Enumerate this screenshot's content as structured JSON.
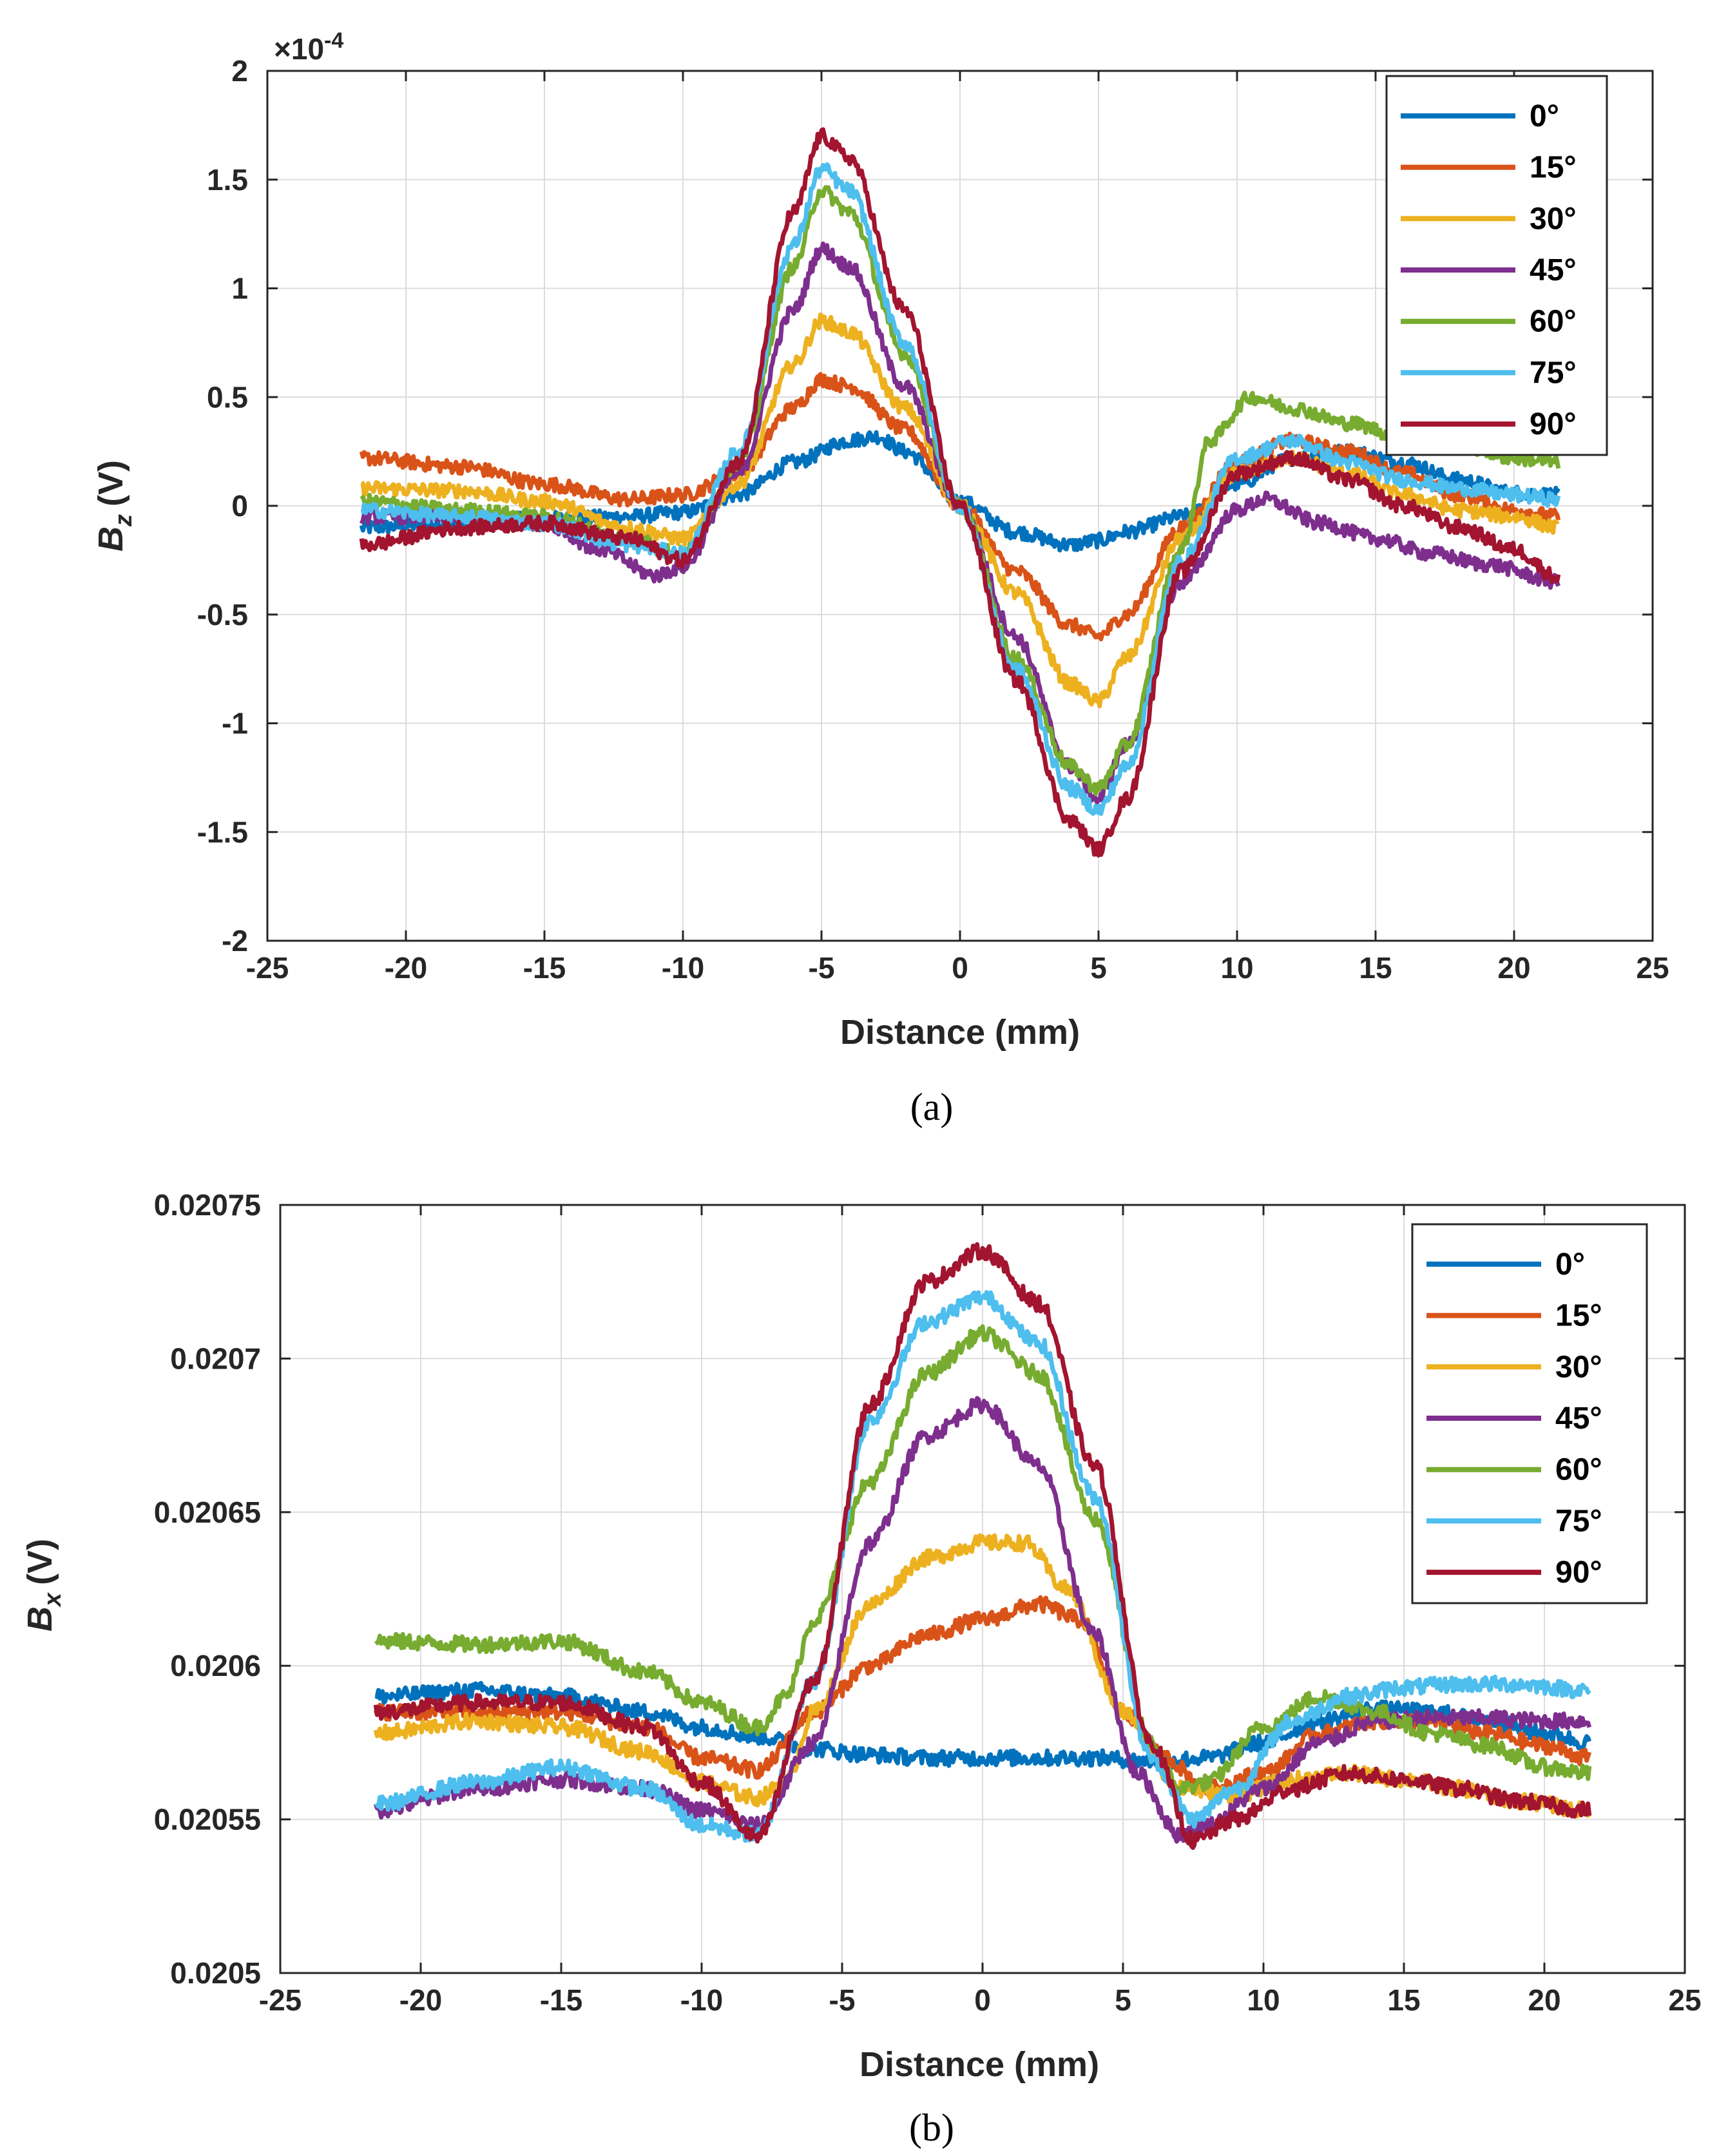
{
  "chart_data": [
    {
      "type": "line",
      "panel": "a",
      "caption": "(a)",
      "xlabel": "Distance (mm)",
      "ylabel_main": "B",
      "ylabel_sub": "z",
      "ylabel_unit": "(V)",
      "exponent_label": "×10",
      "exponent_power": "-4",
      "xlim": [
        -25,
        25
      ],
      "ylim": [
        -2,
        2
      ],
      "xticks": [
        -25,
        -20,
        -15,
        -10,
        -5,
        0,
        5,
        10,
        15,
        20,
        25
      ],
      "yticks": [
        -2,
        -1.5,
        -1,
        -0.5,
        0,
        0.5,
        1,
        1.5,
        2
      ],
      "xtick_labels": [
        "-25",
        "-20",
        "-15",
        "-10",
        "-5",
        "0",
        "5",
        "10",
        "15",
        "20",
        "25"
      ],
      "ytick_labels": [
        "-2",
        "-1.5",
        "-1",
        "-0.5",
        "0",
        "0.5",
        "1",
        "1.5",
        "2"
      ],
      "grid": true,
      "legend_position": "top-right",
      "series": [
        {
          "name": "0°",
          "color": "#0072BD",
          "x": [
            -21.6,
            -18,
            -15,
            -12,
            -10,
            -8,
            -6,
            -4,
            -3,
            -2,
            0,
            2,
            4,
            5,
            6,
            8,
            10,
            12,
            14,
            16,
            18,
            20,
            21.6
          ],
          "y": [
            -0.1,
            -0.08,
            -0.06,
            -0.05,
            -0.03,
            0.05,
            0.2,
            0.3,
            0.32,
            0.25,
            0.02,
            -0.12,
            -0.18,
            -0.16,
            -0.12,
            -0.05,
            0.1,
            0.22,
            0.25,
            0.2,
            0.12,
            0.06,
            0.05
          ]
        },
        {
          "name": "15°",
          "color": "#D95319",
          "x": [
            -21.6,
            -18,
            -15,
            -12,
            -10,
            -8,
            -6,
            -5,
            -4,
            -2,
            0,
            2,
            4,
            5,
            6,
            8,
            10,
            12,
            14,
            16,
            18,
            20,
            21.6
          ],
          "y": [
            0.22,
            0.18,
            0.1,
            0.03,
            0.05,
            0.15,
            0.45,
            0.58,
            0.55,
            0.35,
            0.0,
            -0.3,
            -0.55,
            -0.6,
            -0.5,
            -0.1,
            0.2,
            0.3,
            0.25,
            0.15,
            0.05,
            -0.02,
            -0.05
          ]
        },
        {
          "name": "30°",
          "color": "#EDB120",
          "x": [
            -21.6,
            -18,
            -15,
            -12,
            -10,
            -8,
            -6,
            -5,
            -4,
            -2,
            0,
            2,
            4,
            5,
            6,
            8,
            10,
            12,
            14,
            16,
            18,
            20,
            21.6
          ],
          "y": [
            0.08,
            0.07,
            0.02,
            -0.1,
            -0.15,
            0.1,
            0.65,
            0.85,
            0.8,
            0.45,
            0.0,
            -0.4,
            -0.82,
            -0.9,
            -0.7,
            -0.15,
            0.15,
            0.22,
            0.15,
            0.05,
            -0.02,
            -0.05,
            -0.1
          ]
        },
        {
          "name": "45°",
          "color": "#7E2F8E",
          "x": [
            -21.6,
            -18,
            -15,
            -13,
            -11,
            -10,
            -8,
            -6,
            -5,
            -4,
            -2,
            0,
            2,
            4,
            5,
            6,
            8,
            10,
            11,
            13,
            15,
            17,
            19,
            21.6
          ],
          "y": [
            -0.05,
            -0.05,
            -0.08,
            -0.2,
            -0.32,
            -0.28,
            0.15,
            0.9,
            1.18,
            1.1,
            0.55,
            0.0,
            -0.6,
            -1.2,
            -1.35,
            -1.1,
            -0.35,
            -0.02,
            0.03,
            -0.08,
            -0.15,
            -0.22,
            -0.27,
            -0.35
          ]
        },
        {
          "name": "60°",
          "color": "#77AC30",
          "x": [
            -21.6,
            -18,
            -15,
            -12,
            -10,
            -8,
            -6,
            -5,
            -4,
            -2,
            0,
            2,
            4,
            5,
            6,
            8,
            9,
            10.5,
            12,
            14,
            16,
            18,
            20,
            21.6
          ],
          "y": [
            0.02,
            -0.02,
            -0.05,
            -0.15,
            -0.22,
            0.2,
            1.1,
            1.45,
            1.35,
            0.7,
            0.0,
            -0.7,
            -1.2,
            -1.3,
            -1.1,
            -0.2,
            0.3,
            0.5,
            0.45,
            0.38,
            0.32,
            0.28,
            0.22,
            0.2
          ]
        },
        {
          "name": "75°",
          "color": "#4DBEEE",
          "x": [
            -21.6,
            -18,
            -15,
            -12,
            -10,
            -8,
            -6,
            -5,
            -4,
            -2,
            0,
            2,
            4,
            5,
            6,
            8,
            10,
            12,
            14,
            16,
            18,
            20,
            21.6
          ],
          "y": [
            -0.02,
            -0.05,
            -0.08,
            -0.18,
            -0.22,
            0.25,
            1.2,
            1.55,
            1.45,
            0.75,
            0.0,
            -0.75,
            -1.3,
            -1.4,
            -1.2,
            -0.25,
            0.22,
            0.3,
            0.2,
            0.12,
            0.08,
            0.05,
            0.03
          ]
        },
        {
          "name": "90°",
          "color": "#A2142F",
          "x": [
            -21.6,
            -18,
            -15,
            -12,
            -10,
            -8,
            -6,
            -5,
            -4,
            -2,
            0,
            2,
            4,
            5,
            6,
            8,
            10,
            12,
            14,
            16,
            18,
            20,
            21.6
          ],
          "y": [
            -0.18,
            -0.1,
            -0.08,
            -0.15,
            -0.25,
            0.2,
            1.35,
            1.7,
            1.6,
            0.9,
            0.0,
            -0.8,
            -1.45,
            -1.58,
            -1.35,
            -0.3,
            0.15,
            0.22,
            0.12,
            0.0,
            -0.1,
            -0.2,
            -0.33
          ]
        }
      ]
    },
    {
      "type": "line",
      "panel": "b",
      "caption": "(b)",
      "xlabel": "Distance (mm)",
      "ylabel_main": "B",
      "ylabel_sub": "x",
      "ylabel_unit": "(V)",
      "xlim": [
        -25,
        25
      ],
      "ylim": [
        0.0205,
        0.02075
      ],
      "xticks": [
        -25,
        -20,
        -15,
        -10,
        -5,
        0,
        5,
        10,
        15,
        20,
        25
      ],
      "yticks": [
        0.0205,
        0.02055,
        0.0206,
        0.02065,
        0.0207,
        0.02075
      ],
      "xtick_labels": [
        "-25",
        "-20",
        "-15",
        "-10",
        "-5",
        "0",
        "5",
        "10",
        "15",
        "20",
        "25"
      ],
      "ytick_labels": [
        "0.0205",
        "0.02055",
        "0.0206",
        "0.02065",
        "0.0207",
        "0.02075"
      ],
      "grid": true,
      "legend_position": "top-right",
      "series": [
        {
          "name": "0°",
          "color": "#0072BD",
          "x": [
            -21.6,
            -18,
            -15,
            -12,
            -10,
            -8,
            -6,
            -4,
            -2,
            0,
            2,
            4,
            6,
            8,
            10,
            12,
            14,
            16,
            18,
            20,
            21.6
          ],
          "y": [
            0.02059,
            0.020592,
            0.02059,
            0.020585,
            0.02058,
            0.020577,
            0.020573,
            0.020571,
            0.02057,
            0.02057,
            0.02057,
            0.02057,
            0.020569,
            0.02057,
            0.020575,
            0.020582,
            0.020586,
            0.020585,
            0.020582,
            0.020578,
            0.020575
          ]
        },
        {
          "name": "15°",
          "color": "#D95319",
          "x": [
            -21.6,
            -18,
            -15,
            -12,
            -10,
            -8,
            -6,
            -4,
            -2,
            0,
            2,
            3.5,
            5,
            6.5,
            8,
            10,
            12,
            14,
            16,
            18,
            20,
            21.6
          ],
          "y": [
            0.020585,
            0.020585,
            0.020585,
            0.02058,
            0.02057,
            0.020566,
            0.020585,
            0.0206,
            0.02061,
            0.020615,
            0.02062,
            0.020615,
            0.020585,
            0.02057,
            0.02056,
            0.020565,
            0.020578,
            0.020582,
            0.020582,
            0.020578,
            0.020574,
            0.02057
          ]
        },
        {
          "name": "30°",
          "color": "#EDB120",
          "x": [
            -21.6,
            -18,
            -15,
            -12,
            -10,
            -8,
            -7,
            -6,
            -4,
            -2,
            0,
            1.5,
            3,
            5,
            7,
            9,
            11,
            13,
            15,
            17,
            19,
            21.6
          ],
          "y": [
            0.020578,
            0.020582,
            0.02058,
            0.020572,
            0.020562,
            0.020557,
            0.020562,
            0.020585,
            0.02062,
            0.020635,
            0.02064,
            0.02064,
            0.020625,
            0.020585,
            0.02056,
            0.020558,
            0.020563,
            0.020565,
            0.020563,
            0.02056,
            0.020556,
            0.020553
          ]
        },
        {
          "name": "45°",
          "color": "#7E2F8E",
          "x": [
            -21.6,
            -18,
            -15,
            -12,
            -10,
            -8,
            -6,
            -4,
            -2,
            0,
            2,
            4,
            5.5,
            7,
            8,
            10,
            12,
            14,
            16,
            18,
            20,
            21.6
          ],
          "y": [
            0.020553,
            0.02056,
            0.020563,
            0.02056,
            0.020553,
            0.020548,
            0.020575,
            0.02064,
            0.020675,
            0.020685,
            0.020665,
            0.02061,
            0.020565,
            0.020545,
            0.020548,
            0.02056,
            0.020575,
            0.020582,
            0.020583,
            0.020583,
            0.020582,
            0.020582
          ]
        },
        {
          "name": "60°",
          "color": "#77AC30",
          "x": [
            -21.6,
            -18,
            -15,
            -12,
            -10,
            -8,
            -7,
            -6,
            -4,
            -2,
            0,
            2,
            4,
            6,
            7,
            8,
            10,
            12,
            14,
            16,
            18,
            20,
            21.6
          ],
          "y": [
            0.020608,
            0.020607,
            0.020608,
            0.020598,
            0.020588,
            0.02058,
            0.02059,
            0.020615,
            0.02066,
            0.020695,
            0.020708,
            0.020695,
            0.020648,
            0.020575,
            0.02056,
            0.020562,
            0.02058,
            0.02059,
            0.020585,
            0.020578,
            0.020574,
            0.020567,
            0.020565
          ]
        },
        {
          "name": "75°",
          "color": "#4DBEEE",
          "x": [
            -21.6,
            -18,
            -15,
            -12,
            -10,
            -8,
            -6,
            -4,
            -2,
            0,
            2,
            4,
            6,
            7.5,
            9,
            11,
            13,
            15,
            17,
            19,
            21.6
          ],
          "y": [
            0.020555,
            0.020562,
            0.020567,
            0.02056,
            0.020548,
            0.020545,
            0.020595,
            0.02068,
            0.020712,
            0.02072,
            0.020705,
            0.020655,
            0.02057,
            0.02055,
            0.02056,
            0.020582,
            0.02059,
            0.020593,
            0.020594,
            0.020594,
            0.020592
          ]
        },
        {
          "name": "90°",
          "color": "#A2142F",
          "x": [
            -21.6,
            -18,
            -15,
            -12,
            -10,
            -8,
            -6,
            -4,
            -2,
            0,
            2,
            4,
            6,
            7.5,
            9,
            11,
            13,
            15,
            17,
            19,
            21.6
          ],
          "y": [
            0.020585,
            0.020588,
            0.020588,
            0.02058,
            0.020562,
            0.020544,
            0.020595,
            0.020685,
            0.020725,
            0.020735,
            0.020718,
            0.020665,
            0.020575,
            0.020543,
            0.02055,
            0.02056,
            0.020565,
            0.020563,
            0.02056,
            0.020556,
            0.020553
          ]
        }
      ]
    }
  ]
}
